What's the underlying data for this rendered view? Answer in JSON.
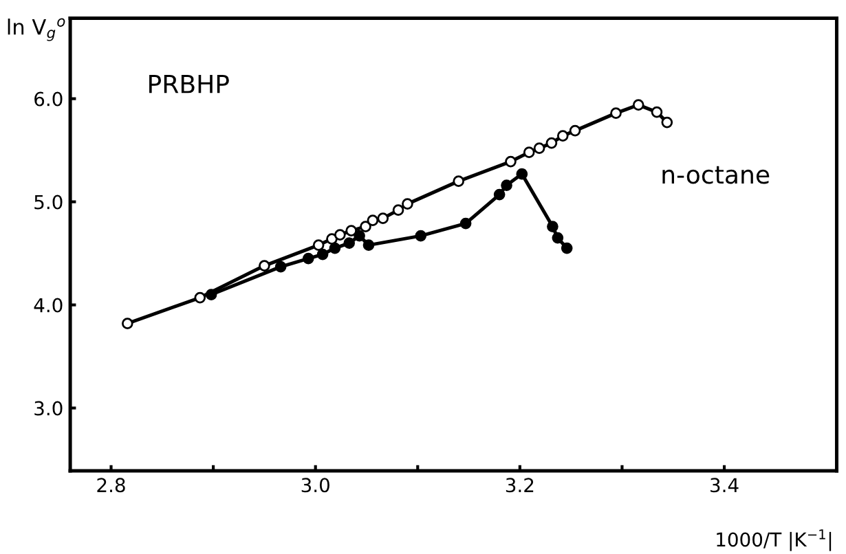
{
  "chart_data": {
    "type": "line",
    "xlabel": "1000/T |K$^{−1}$|",
    "ylabel": "ln V$_{g}$$^{o}$",
    "annotations": [
      "PRBHP",
      "n-octane"
    ],
    "xlim": [
      2.76,
      3.51
    ],
    "ylim": [
      2.39,
      6.78
    ],
    "xticks": [
      2.8,
      {
        "value": 2.9,
        "label": null
      },
      {
        "value": 3,
        "label": "3.0"
      },
      {
        "value": 3.1,
        "label": null
      },
      3.2,
      {
        "value": 3.3,
        "label": null
      },
      3.4
    ],
    "yticks": [
      {
        "value": 3,
        "label": "3.0"
      },
      {
        "value": 4,
        "label": "4.0"
      },
      {
        "value": 5,
        "label": "5.0"
      },
      {
        "value": 6,
        "label": "6.0"
      }
    ],
    "grid": false,
    "marker": "circle",
    "line_style": "solid",
    "series": [
      {
        "color": "#000000",
        "x": [
          2.816,
          2.887,
          2.95,
          3.003,
          3.016,
          3.024,
          3.035,
          3.049,
          3.056,
          3.066,
          3.081,
          3.09,
          3.14,
          3.191,
          3.209,
          3.219,
          3.231,
          3.242,
          3.254,
          3.294,
          3.316,
          3.334,
          3.344
        ],
        "values": [
          3.82,
          4.07,
          4.38,
          4.58,
          4.64,
          4.68,
          4.72,
          4.76,
          4.82,
          4.84,
          4.92,
          4.98,
          5.2,
          5.39,
          5.48,
          5.52,
          5.57,
          5.64,
          5.69,
          5.86,
          5.94,
          5.87,
          5.77
        ]
      },
      {
        "color": "#000000",
        "x": [
          2.898,
          2.966,
          2.993,
          3.007,
          3.019,
          3.033,
          3.043,
          3.052,
          3.103,
          3.147,
          3.18,
          3.187,
          3.202,
          3.232,
          3.237,
          3.246
        ],
        "values": [
          4.1,
          4.37,
          4.45,
          4.49,
          4.55,
          4.6,
          4.67,
          4.58,
          4.67,
          4.79,
          5.07,
          5.16,
          5.27,
          4.76,
          4.65,
          4.55
        ]
      }
    ]
  }
}
